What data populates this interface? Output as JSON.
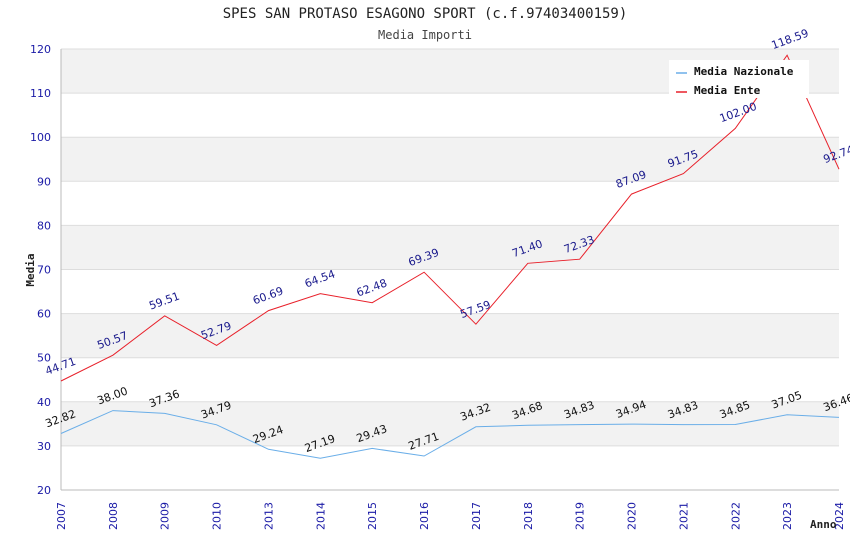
{
  "chart_data": {
    "type": "line",
    "title": "SPES SAN PROTASO ESAGONO SPORT (c.f.97403400159)",
    "subtitle": "Media Importi",
    "xlabel": "Anno",
    "ylabel": "Media",
    "ylim": [
      20,
      120
    ],
    "yticks": [
      "20",
      "30",
      "40",
      "50",
      "60",
      "70",
      "80",
      "90",
      "100",
      "110",
      "120"
    ],
    "categories": [
      "2007",
      "2008",
      "2009",
      "2010",
      "2013",
      "2014",
      "2015",
      "2016",
      "2017",
      "2018",
      "2019",
      "2020",
      "2021",
      "2022",
      "2023",
      "2024"
    ],
    "series": [
      {
        "name": "Media Nazionale",
        "color": "#6aaee8",
        "label_color": "#111111",
        "values": [
          32.82,
          38.0,
          37.36,
          34.79,
          29.24,
          27.19,
          29.43,
          27.71,
          34.32,
          34.68,
          34.83,
          34.94,
          34.83,
          34.85,
          37.05,
          36.46
        ],
        "labels": [
          "32.82",
          "38.00",
          "37.36",
          "34.79",
          "29.24",
          "27.19",
          "29.43",
          "27.71",
          "34.32",
          "34.68",
          "34.83",
          "34.94",
          "34.83",
          "34.85",
          "37.05",
          "36.46"
        ]
      },
      {
        "name": "Media Ente",
        "color": "#e8202a",
        "label_color": "#1a1a8c",
        "values": [
          44.71,
          50.57,
          59.51,
          52.79,
          60.69,
          64.54,
          62.48,
          69.39,
          57.59,
          71.4,
          72.33,
          87.09,
          91.75,
          102.0,
          118.59,
          92.74
        ],
        "labels": [
          "44.71",
          "50.57",
          "59.51",
          "52.79",
          "60.69",
          "64.54",
          "62.48",
          "69.39",
          "57.59",
          "71.40",
          "72.33",
          "87.09",
          "91.75",
          "102.00",
          "118.59",
          "92.74"
        ]
      }
    ],
    "grid": true,
    "legend": "top-right",
    "background_band_color": "#f2f2f2"
  }
}
